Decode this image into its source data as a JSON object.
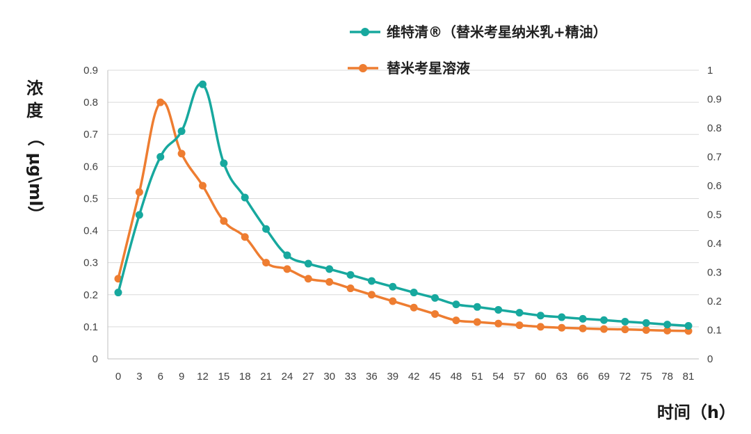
{
  "chart_data": {
    "type": "line",
    "xlabel": "时间（h）",
    "ylabel_parts": [
      "浓",
      "度",
      "（",
      "μg\\ml",
      "）"
    ],
    "x": [
      0,
      3,
      6,
      9,
      12,
      15,
      18,
      21,
      24,
      27,
      30,
      33,
      36,
      39,
      42,
      45,
      48,
      51,
      54,
      57,
      60,
      63,
      66,
      69,
      72,
      75,
      78,
      81
    ],
    "y_left_ticks": [
      "0",
      "0.1",
      "0.2",
      "0.3",
      "0.4",
      "0.5",
      "0.6",
      "0.7",
      "0.8",
      "0.9"
    ],
    "y_right_ticks": [
      "0",
      "0.1",
      "0.2",
      "0.3",
      "0.4",
      "0.5",
      "0.6",
      "0.7",
      "0.8",
      "0.9",
      "1"
    ],
    "ylim_left": [
      0,
      0.9
    ],
    "ylim_right": [
      0,
      1
    ],
    "grid": true,
    "legend_position": "top-right",
    "series": [
      {
        "name": "维特清®（替米考星纳米乳+精油）",
        "color": "#17A89E",
        "axis": "left",
        "values": [
          0.207,
          0.449,
          0.63,
          0.71,
          0.856,
          0.61,
          0.503,
          0.405,
          0.323,
          0.297,
          0.28,
          0.262,
          0.243,
          0.225,
          0.207,
          0.19,
          0.17,
          0.162,
          0.153,
          0.144,
          0.135,
          0.13,
          0.125,
          0.121,
          0.116,
          0.112,
          0.107,
          0.103
        ]
      },
      {
        "name": "替米考星溶液",
        "color": "#EE7D31",
        "axis": "left",
        "values": [
          0.25,
          0.52,
          0.8,
          0.64,
          0.54,
          0.43,
          0.38,
          0.3,
          0.28,
          0.25,
          0.24,
          0.22,
          0.2,
          0.18,
          0.16,
          0.14,
          0.12,
          0.115,
          0.11,
          0.105,
          0.1,
          0.097,
          0.095,
          0.093,
          0.092,
          0.09,
          0.088,
          0.087
        ]
      }
    ]
  }
}
